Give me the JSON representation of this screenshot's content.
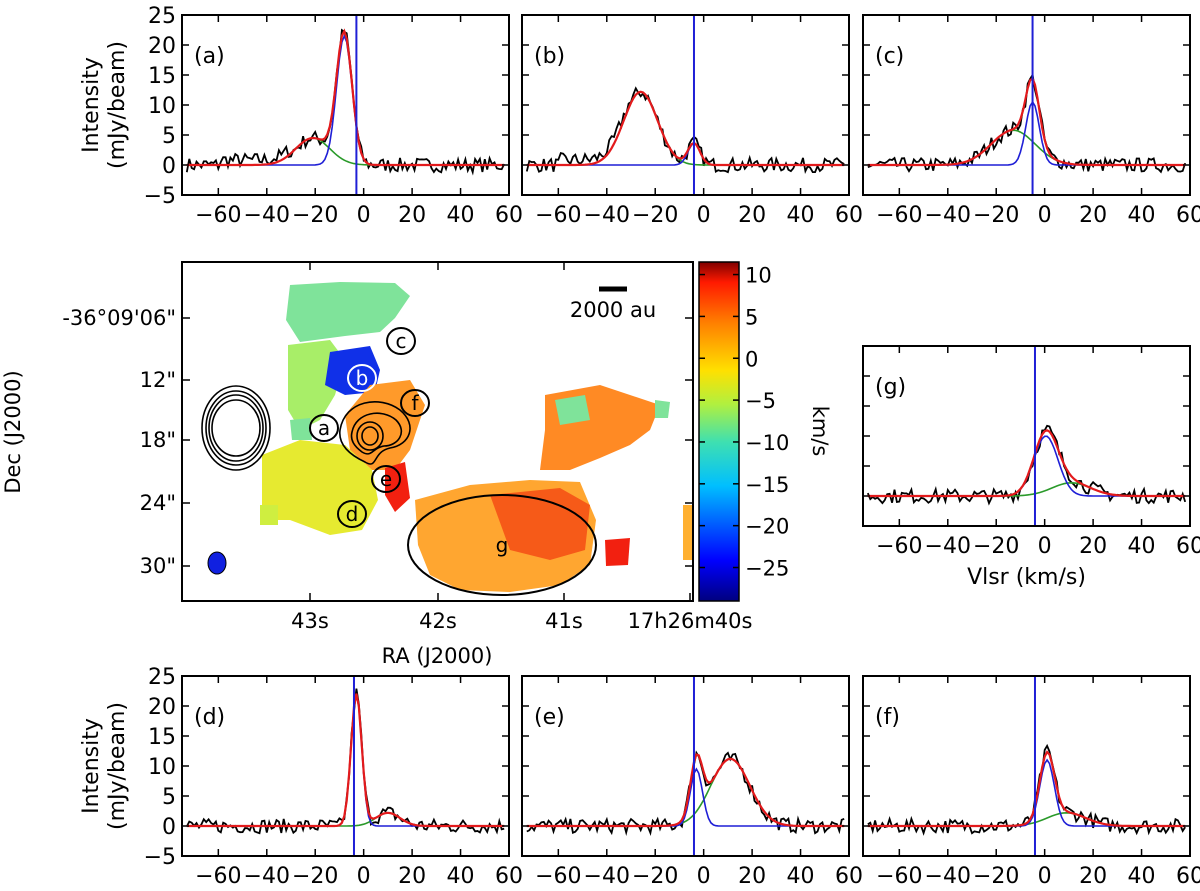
{
  "chart_data": {
    "type": "line",
    "x_range": [
      -75,
      60
    ],
    "y_range": [
      -5,
      25
    ],
    "x_ticks": [
      -60,
      -40,
      -20,
      0,
      20,
      40,
      60
    ],
    "y_ticks": [
      -5,
      0,
      5,
      10,
      15,
      20,
      25
    ],
    "xlabel": "Vlsr (km/s)",
    "ylabel_line1": "Intensity",
    "ylabel_line2": "(mJy/beam)",
    "series_colors": {
      "observed": "#000000",
      "fit_total": "#e31a1c",
      "comp1": "#1f1fd6",
      "comp2": "#2a9a2a",
      "vline": "#1f1fd6"
    },
    "spectra": [
      {
        "label": "(a)",
        "vline": -3,
        "components": [
          {
            "color": "blue",
            "amp": 21.5,
            "center": -8,
            "sigma": 3.2
          },
          {
            "color": "green",
            "amp": 4.5,
            "center": -21,
            "sigma": 7
          }
        ]
      },
      {
        "label": "(b)",
        "vline": -4,
        "components": [
          {
            "color": "blue",
            "amp": 3.6,
            "center": -4,
            "sigma": 2.5
          },
          {
            "color": "green",
            "amp": 12.2,
            "center": -26,
            "sigma": 7
          }
        ]
      },
      {
        "label": "(c)",
        "vline": -5,
        "components": [
          {
            "color": "blue",
            "amp": 10.5,
            "center": -5,
            "sigma": 2.8
          },
          {
            "color": "green",
            "amp": 5.8,
            "center": -13,
            "sigma": 9
          }
        ]
      },
      {
        "label": "(d)",
        "vline": -4,
        "components": [
          {
            "color": "blue",
            "amp": 22,
            "center": -3,
            "sigma": 2.2
          },
          {
            "color": "green",
            "amp": 2.2,
            "center": 10,
            "sigma": 5
          }
        ]
      },
      {
        "label": "(e)",
        "vline": -4,
        "components": [
          {
            "color": "blue",
            "amp": 9.5,
            "center": -3,
            "sigma": 2.5
          },
          {
            "color": "green",
            "amp": 11.2,
            "center": 11,
            "sigma": 8
          }
        ]
      },
      {
        "label": "(f)",
        "vline": -4,
        "components": [
          {
            "color": "blue",
            "amp": 11,
            "center": 1,
            "sigma": 3
          },
          {
            "color": "green",
            "amp": 2.2,
            "center": 9,
            "sigma": 8
          }
        ]
      },
      {
        "label": "(g)",
        "vline": -4,
        "components": [
          {
            "color": "blue",
            "amp": 10,
            "center": 0.5,
            "sigma": 5
          },
          {
            "color": "green",
            "amp": 2.2,
            "center": 11,
            "sigma": 8
          }
        ]
      }
    ],
    "map": {
      "dec_ticks": [
        "-36°09'06\"",
        "12\"",
        "18\"",
        "24\"",
        "30\""
      ],
      "ra_ticks": [
        "43s",
        "42s",
        "41s",
        "17h26m40s"
      ],
      "xlabel": "RA (J2000)",
      "ylabel": "Dec (J2000)",
      "scalebar_label": "2000 au",
      "regions": [
        "a",
        "b",
        "c",
        "d",
        "e",
        "f",
        "g"
      ],
      "colorbar": {
        "label": "km/s",
        "min": -29,
        "max": 11.5,
        "ticks": [
          10,
          5,
          0,
          -5,
          -10,
          -15,
          -20,
          -25
        ]
      }
    }
  }
}
